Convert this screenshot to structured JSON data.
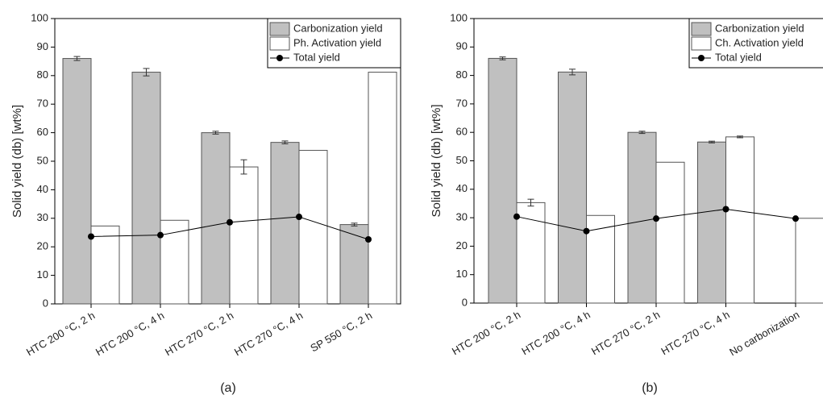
{
  "chart_data": [
    {
      "type": "bar",
      "panel_label": "(a)",
      "y_label": "Solid yield (db) [wt%]",
      "categories": [
        "HTC 200 °C, 2 h",
        "HTC 200 °C, 4 h",
        "HTC 270 °C, 2 h",
        "HTC 270 °C, 4 h",
        "SP 550 °C, 2 h"
      ],
      "series": [
        {
          "name": "Carbonization yield",
          "type": "bar",
          "color": "#c0c0c0",
          "values": [
            86,
            81.2,
            60,
            56.6,
            27.8
          ],
          "errors": [
            0.7,
            1.3,
            0.5,
            0.5,
            0.5
          ]
        },
        {
          "name": "Ph. Activation yield",
          "type": "bar",
          "color": "#ffffff",
          "values": [
            27.3,
            29.3,
            48,
            53.8,
            81.2
          ],
          "errors": [
            null,
            null,
            2.5,
            null,
            null
          ]
        },
        {
          "name": "Total yield",
          "type": "line",
          "color": "#000000",
          "values": [
            23.6,
            24.1,
            28.6,
            30.5,
            22.6
          ]
        }
      ],
      "ylim": [
        0,
        100
      ],
      "yticks": [
        0,
        10,
        20,
        30,
        40,
        50,
        60,
        70,
        80,
        90,
        100
      ],
      "legend": "top-right"
    },
    {
      "type": "bar",
      "panel_label": "(b)",
      "y_label": "Solid yield (db) [wt%]",
      "categories": [
        "HTC 200 °C, 2 h",
        "HTC 200 °C, 4 h",
        "HTC 270 °C, 2 h",
        "HTC 270 °C, 4 h",
        "No carbonization"
      ],
      "series": [
        {
          "name": "Carbonization yield",
          "type": "bar",
          "color": "#c0c0c0",
          "values": [
            86,
            81.2,
            60,
            56.6,
            null
          ],
          "errors": [
            0.5,
            1,
            0.4,
            0.3,
            null
          ]
        },
        {
          "name": "Ch. Activation yield",
          "type": "bar",
          "color": "#ffffff",
          "values": [
            35.3,
            30.8,
            49.5,
            58.4,
            29.8
          ],
          "errors": [
            1.2,
            null,
            null,
            0.3,
            null
          ]
        },
        {
          "name": "Total yield",
          "type": "line",
          "color": "#000000",
          "values": [
            30.4,
            25.3,
            29.7,
            33,
            29.7
          ]
        }
      ],
      "ylim": [
        0,
        100
      ],
      "yticks": [
        0,
        10,
        20,
        30,
        40,
        50,
        60,
        70,
        80,
        90,
        100
      ],
      "legend": "top-right"
    }
  ]
}
